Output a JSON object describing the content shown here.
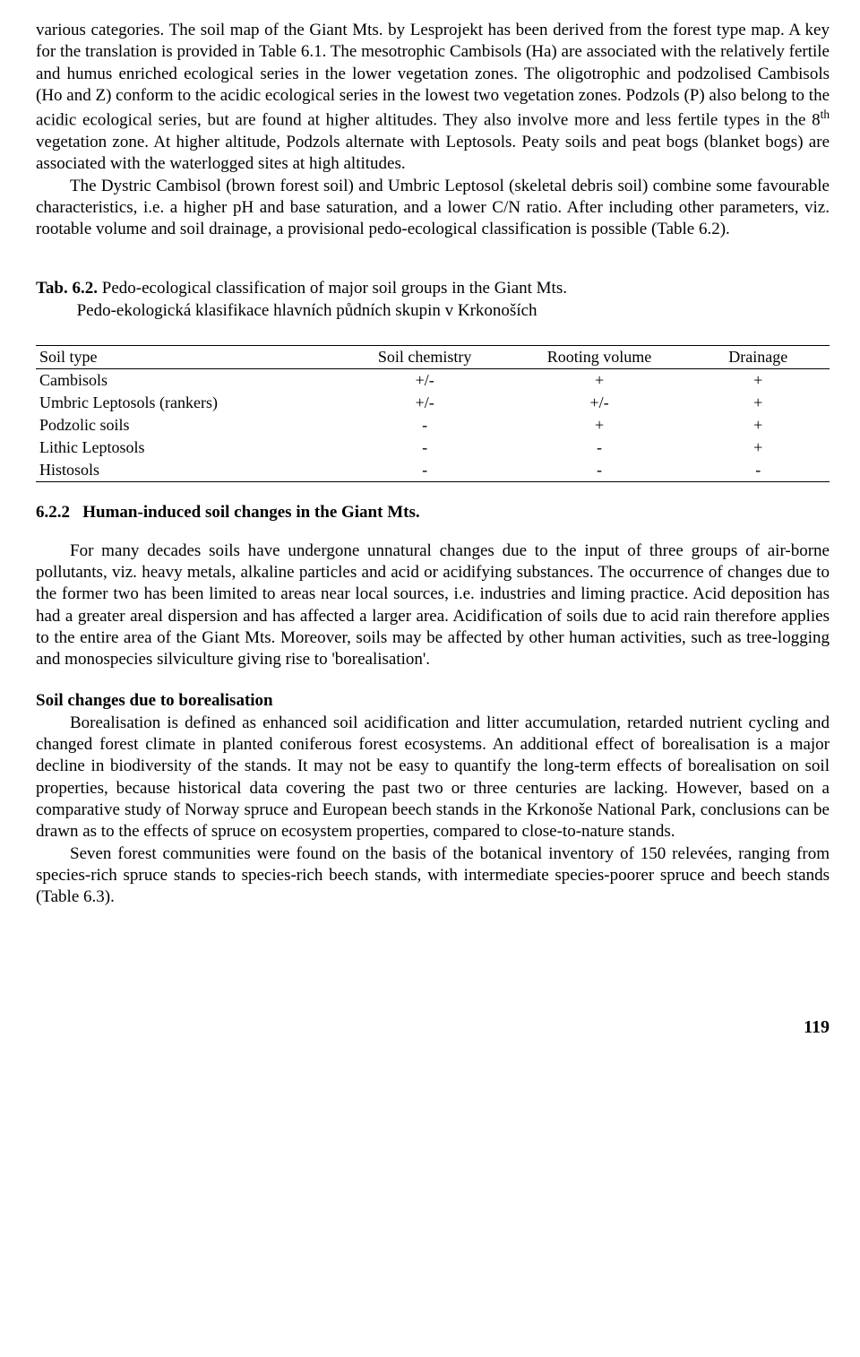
{
  "para1": {
    "text": "various categories. The soil map of the Giant Mts. by Lesprojekt has been derived from the forest type map. A key for the translation is provided in Table 6.1. The mesotrophic Cambisols (Ha) are associated with the relatively fertile and humus enriched ecological series in the lower vegetation zones. The oligotrophic and podzolised Cambisols (Ho and Z) conform to the acidic ecological series in the lowest two vegetation zones. Podzols (P) also belong to the acidic ecological series, but are found at higher altitudes. They also involve more and less fertile types in the 8",
    "sup": "th",
    "tail": " vegetation zone. At higher altitude, Podzols alternate with Leptosols. Peaty soils and peat bogs (blanket bogs) are associated with the waterlogged sites at high altitudes."
  },
  "para2": "The Dystric Cambisol (brown forest soil) and Umbric Leptosol (skeletal debris soil) combine some favourable characteristics, i.e. a higher pH and base saturation, and a lower C/N ratio. After including other parameters, viz. rootable volume and soil drainage, a provisional pedo-ecological classification is possible (Table 6.2).",
  "tab62": {
    "label": "Tab. 6.2.",
    "title": " Pedo-ecological classification of major soil groups in the Giant Mts.",
    "subtitle": "Pedo-ekologická klasifikace hlavních půdních skupin v Krkonoších"
  },
  "table": {
    "headers": [
      "Soil type",
      "Soil chemistry",
      "Rooting volume",
      "Drainage"
    ],
    "rows": [
      [
        "Cambisols",
        "+/-",
        "+",
        "+"
      ],
      [
        "Umbric Leptosols (rankers)",
        "+/-",
        "+/-",
        "+"
      ],
      [
        "Podzolic soils",
        "-",
        "+",
        "+"
      ],
      [
        "Lithic Leptosols",
        "-",
        "-",
        "+"
      ],
      [
        "Histosols",
        "-",
        "-",
        "-"
      ]
    ],
    "colwidths": [
      "38%",
      "22%",
      "22%",
      "18%"
    ]
  },
  "h622": {
    "num": "6.2.2",
    "title": "Human-induced soil changes in the Giant Mts."
  },
  "para3": "For many decades soils have undergone unnatural changes due to the input of three groups of air-borne pollutants, viz. heavy metals, alkaline particles and acid or acidifying substances. The occurrence of changes due to the former two has been limited to areas near local sources, i.e. industries and liming practice. Acid deposition has had a greater areal dispersion and has affected a larger area. Acidification of soils due to acid rain therefore applies to the entire area of the Giant Mts. Moreover, soils may be affected by other human activities, such as tree-logging and monospecies silviculture giving rise to 'borealisation'.",
  "subhead": "Soil changes due to borealisation",
  "para4": "Borealisation is defined as enhanced soil acidification and litter accumulation, retarded nutrient cycling and changed forest climate in planted coniferous forest ecosystems. An additional effect of borealisation is a major decline in biodiversity of the stands. It may not be easy to quantify the long-term effects of borealisation on soil properties, because historical data covering the past two or three centuries are lacking. However, based on a comparative study of Norway spruce and European beech stands in the Krkonoše National Park, conclusions can be drawn as to the effects of spruce on ecosystem properties, compared to close-to-nature stands.",
  "para5": "Seven forest communities were found on the basis of the botanical inventory of 150 relevées, ranging from species-rich spruce stands to species-rich beech stands, with intermediate species-poorer spruce and beech stands (Table 6.3).",
  "pagenum": "119"
}
